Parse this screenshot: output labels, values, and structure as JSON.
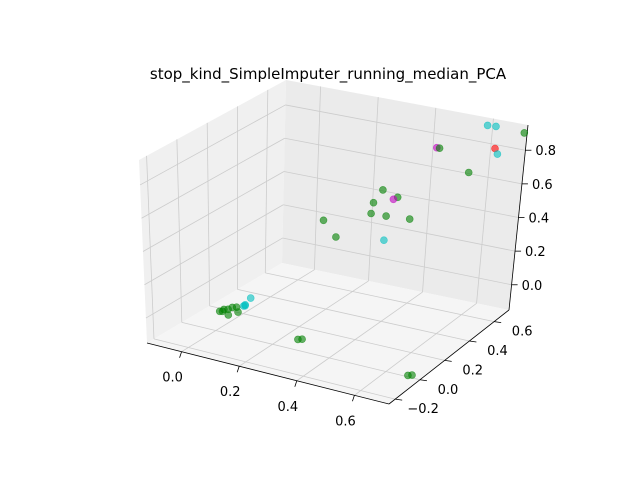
{
  "chart_data": {
    "type": "scatter",
    "projection": "3d",
    "title": "stop_kind_SimpleImputer_running_median_PCA",
    "xlabel": "",
    "ylabel": "",
    "zlabel": "",
    "grid": true,
    "xlim": [
      -0.12,
      0.72
    ],
    "ylim": [
      -0.25,
      0.72
    ],
    "zlim": [
      -0.15,
      0.95
    ],
    "x_ticks": [
      0.0,
      0.2,
      0.4,
      0.6
    ],
    "x_tick_labels": [
      "0.0",
      "0.2",
      "0.4",
      "0.6"
    ],
    "y_ticks": [
      -0.2,
      0.0,
      0.2,
      0.4,
      0.6
    ],
    "y_tick_labels": [
      "−0.2",
      "0.0",
      "0.2",
      "0.4",
      "0.6"
    ],
    "z_ticks": [
      0.0,
      0.2,
      0.4,
      0.6,
      0.8
    ],
    "z_tick_labels": [
      "0.0",
      "0.2",
      "0.4",
      "0.6",
      "0.8"
    ],
    "colors": {
      "green": "#008000",
      "cyan": "#00bfbf",
      "magenta": "#bf00bf",
      "red": "#ff0000",
      "pane_left": "#f0f0f0",
      "pane_back": "#ebebeb",
      "pane_floor": "#f5f5f5",
      "grid": "#cccccc"
    },
    "points": [
      {
        "x": 0.0,
        "y": 0.03,
        "z": -0.05,
        "color": "green"
      },
      {
        "x": 0.01,
        "y": 0.04,
        "z": -0.04,
        "color": "green"
      },
      {
        "x": 0.02,
        "y": 0.05,
        "z": -0.04,
        "color": "green"
      },
      {
        "x": 0.03,
        "y": 0.06,
        "z": -0.03,
        "color": "green"
      },
      {
        "x": 0.04,
        "y": 0.07,
        "z": -0.03,
        "color": "green"
      },
      {
        "x": 0.05,
        "y": 0.06,
        "z": -0.05,
        "color": "green"
      },
      {
        "x": 0.0,
        "y": 0.05,
        "z": -0.06,
        "color": "green"
      },
      {
        "x": 0.03,
        "y": 0.03,
        "z": -0.06,
        "color": "green"
      },
      {
        "x": 0.06,
        "y": 0.08,
        "z": -0.02,
        "color": "cyan"
      },
      {
        "x": 0.07,
        "y": 0.07,
        "z": -0.01,
        "color": "cyan"
      },
      {
        "x": 0.08,
        "y": 0.05,
        "z": 0.01,
        "color": "cyan"
      },
      {
        "x": 0.08,
        "y": 0.09,
        "z": 0.03,
        "color": "cyan"
      },
      {
        "x": 0.28,
        "y": 0.02,
        "z": -0.1,
        "color": "green"
      },
      {
        "x": 0.29,
        "y": 0.03,
        "z": -0.1,
        "color": "green"
      },
      {
        "x": 0.69,
        "y": -0.03,
        "z": -0.12,
        "color": "green"
      },
      {
        "x": 0.7,
        "y": -0.02,
        "z": -0.12,
        "color": "green"
      },
      {
        "x": 0.11,
        "y": 0.55,
        "z": 0.27,
        "color": "green"
      },
      {
        "x": 0.18,
        "y": 0.5,
        "z": 0.22,
        "color": "green"
      },
      {
        "x": 0.23,
        "y": 0.65,
        "z": 0.3,
        "color": "green"
      },
      {
        "x": 0.26,
        "y": 0.6,
        "z": 0.4,
        "color": "green"
      },
      {
        "x": 0.3,
        "y": 0.58,
        "z": 0.5,
        "color": "green"
      },
      {
        "x": 0.33,
        "y": 0.55,
        "z": 0.37,
        "color": "green"
      },
      {
        "x": 0.35,
        "y": 0.5,
        "z": 0.26,
        "color": "cyan"
      },
      {
        "x": 0.32,
        "y": 0.62,
        "z": 0.43,
        "color": "magenta"
      },
      {
        "x": 0.33,
        "y": 0.63,
        "z": 0.44,
        "color": "green"
      },
      {
        "x": 0.4,
        "y": 0.58,
        "z": 0.36,
        "color": "green"
      },
      {
        "x": 0.45,
        "y": 0.64,
        "z": 0.77,
        "color": "magenta"
      },
      {
        "x": 0.46,
        "y": 0.64,
        "z": 0.77,
        "color": "green"
      },
      {
        "x": 0.54,
        "y": 0.7,
        "z": 0.62,
        "color": "green"
      },
      {
        "x": 0.6,
        "y": 0.68,
        "z": 0.93,
        "color": "cyan"
      },
      {
        "x": 0.62,
        "y": 0.7,
        "z": 0.92,
        "color": "cyan"
      },
      {
        "x": 0.65,
        "y": 0.64,
        "z": 0.83,
        "color": "red"
      },
      {
        "x": 0.66,
        "y": 0.64,
        "z": 0.8,
        "color": "cyan"
      },
      {
        "x": 0.71,
        "y": 0.72,
        "z": 0.9,
        "color": "green"
      }
    ]
  }
}
